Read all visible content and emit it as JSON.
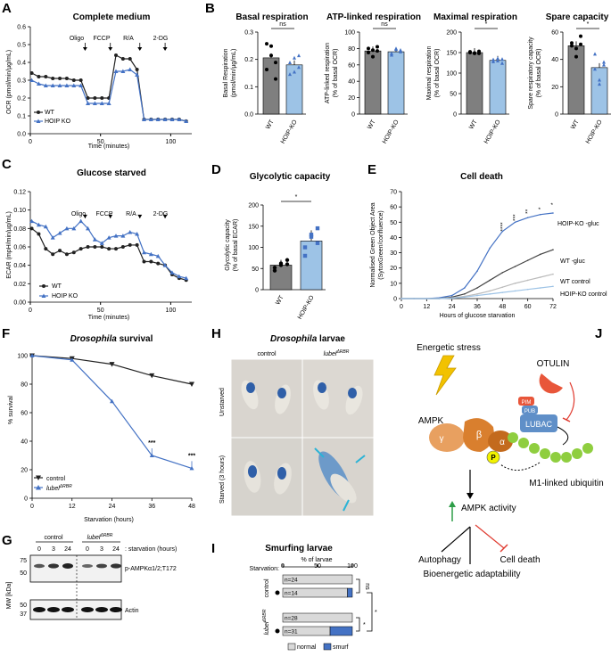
{
  "colors": {
    "wt": "#222222",
    "ko": "#4472c4",
    "ko_light": "#9dc3e6",
    "gray": "#7f7f7f",
    "green": "#2e9e48",
    "red": "#e03c31",
    "orange": "#d97f2e",
    "yellow": "#f2c200",
    "lubac": "#5f8fc8",
    "otulin": "#e8563a"
  },
  "panels": {
    "A": {
      "letter": "A",
      "title": "Complete medium",
      "ylabel": "OCR (pmol/min/µg/mL)",
      "xlabel": "Time (minutes)",
      "injections": [
        "Oligo",
        "FCCP",
        "R/A",
        "2-DG"
      ],
      "legend": [
        "WT",
        "HOIP KO"
      ],
      "yticks": [
        "0.0",
        "0.1",
        "0.2",
        "0.3",
        "0.4",
        "0.5",
        "0.6"
      ],
      "xticks": [
        "0",
        "50",
        "100"
      ]
    },
    "B": {
      "letter": "B",
      "subs": [
        {
          "title": "Basal respiration",
          "ylabel1": "Basal Respiration",
          "ylabel2": "(pmol/min/µg/mL)",
          "yticks": [
            "0.0",
            "0.1",
            "0.2",
            "0.3"
          ],
          "sig": "ns"
        },
        {
          "title": "ATP-linked respiration",
          "ylabel1": "ATP-linked respiration",
          "ylabel2": "(% of basal OCR)",
          "yticks": [
            "0",
            "20",
            "40",
            "60",
            "80",
            "100"
          ],
          "sig": "ns"
        },
        {
          "title": "Maximal respiration",
          "ylabel1": "Maximal respiration",
          "ylabel2": "(% of basal OCR)",
          "yticks": [
            "0",
            "50",
            "100",
            "150",
            "200"
          ],
          "sig": "*"
        },
        {
          "title": "Spare capacity",
          "ylabel1": "Spare respiratory capacity",
          "ylabel2": "(% of basal OCR)",
          "yticks": [
            "0",
            "20",
            "40",
            "60"
          ],
          "sig": "*"
        }
      ],
      "xcats": [
        "WT",
        "HOIP-KO"
      ]
    },
    "C": {
      "letter": "C",
      "title": "Glucose starved",
      "ylabel": "ECAR (mpH/min/µg/mL)",
      "xlabel": "Time (minutes)",
      "injections": [
        "Oligo",
        "FCCP",
        "R/A",
        "2-DG"
      ],
      "legend": [
        "WT",
        "HOIP KO"
      ],
      "yticks": [
        "0.00",
        "0.02",
        "0.04",
        "0.06",
        "0.08",
        "0.10",
        "0.12"
      ],
      "xticks": [
        "0",
        "50",
        "100"
      ]
    },
    "D": {
      "letter": "D",
      "title": "Glycolytic capacity",
      "ylabel1": "Glycolytic capacity",
      "ylabel2": "(% of basal ECAR)",
      "yticks": [
        "0",
        "50",
        "100",
        "150",
        "200"
      ],
      "xcats": [
        "WT",
        "HOIP-KO"
      ],
      "sig": "*"
    },
    "E": {
      "letter": "E",
      "title": "Cell death",
      "ylabel1": "Normalised Green Object Area",
      "ylabel2": "(SytoxGreen/confluence)",
      "xlabel": "Hours of glucose starvation",
      "yticks": [
        "0",
        "10",
        "20",
        "30",
        "40",
        "50",
        "60",
        "70"
      ],
      "xticks": [
        "0",
        "12",
        "24",
        "36",
        "48",
        "60",
        "72"
      ],
      "labels": [
        "HOIP-KO -gluc",
        "WT -gluc",
        "WT control",
        "HOIP-KO control"
      ],
      "stars": [
        "****",
        "***",
        "**",
        "*",
        "*"
      ]
    },
    "F": {
      "letter": "F",
      "title_italic": "Drosophila",
      "title_rest": " survival",
      "ylabel": "% survival",
      "xlabel": "Starvation (hours)",
      "yticks": [
        "0",
        "20",
        "40",
        "60",
        "80",
        "100"
      ],
      "xticks": [
        "0",
        "12",
        "24",
        "36",
        "48"
      ],
      "legend": [
        "control",
        "lubel"
      ],
      "legend_sup": "ΔRBR",
      "stars": [
        "***",
        "***"
      ]
    },
    "G": {
      "letter": "G",
      "col_control": "control",
      "col_lubel": "lubel",
      "col_sup": "ΔRBR",
      "times": [
        "0",
        "3",
        "24",
        "0",
        "3",
        "24"
      ],
      "time_label": ": starvation (hours)",
      "mw_label": "MW [kDa]",
      "mw": [
        "75",
        "50",
        "50",
        "37"
      ],
      "rows": [
        "p-AMPKα1/2;T172",
        "Actin"
      ]
    },
    "H": {
      "letter": "H",
      "title_italic": "Drosophila",
      "title_rest": " larvae",
      "col_control": "control",
      "col_lubel": "lubel",
      "col_sup": "ΔRBR",
      "rows": [
        "Unstarved",
        "Starved (3 hours)"
      ]
    },
    "I": {
      "letter": "I",
      "title": "Smurfing larvae",
      "axis_label": "% of larvae",
      "starvation_label": "Starvation:",
      "xticks": [
        "0",
        "50",
        "100"
      ],
      "group_control": "control",
      "group_lubel": "lubel",
      "group_sup": "ΔRBR",
      "bars": [
        {
          "n": "n=24",
          "smurf": 0
        },
        {
          "n": "n=14",
          "smurf": 7
        },
        {
          "n": "n=28",
          "smurf": 0
        },
        {
          "n": "n=31",
          "smurf": 32
        }
      ],
      "sig": [
        "ns",
        "*",
        "*"
      ],
      "legend": [
        "normal",
        "smurf"
      ]
    },
    "J": {
      "letter": "J",
      "stress": "Energetic stress",
      "otulin": "OTULIN",
      "pim": "PIM",
      "pub": "PUB",
      "lubac": "LUBAC",
      "ampk": "AMPK",
      "beta": "β",
      "gamma": "γ",
      "alpha": "α",
      "p": "P",
      "ubiquitin": "M1-linked ubiquitin",
      "activity": "AMPK activity",
      "autophagy": "Autophagy",
      "cell_death": "Cell death",
      "bioenergetic": "Bioenergetic adaptability"
    }
  },
  "chart_data": [
    {
      "panel": "A",
      "type": "line",
      "title": "Complete medium",
      "xlabel": "Time (minutes)",
      "ylabel": "OCR (pmol/min/µg/mL)",
      "ylim": [
        0,
        0.6
      ],
      "xlim": [
        0,
        115
      ],
      "x": [
        1,
        6,
        11,
        16,
        21,
        26,
        31,
        36,
        41,
        46,
        51,
        56,
        61,
        66,
        71,
        76,
        81,
        86,
        91,
        96,
        101,
        106,
        111
      ],
      "series": [
        {
          "name": "WT",
          "values": [
            0.34,
            0.32,
            0.32,
            0.31,
            0.31,
            0.31,
            0.3,
            0.3,
            0.2,
            0.2,
            0.2,
            0.2,
            0.44,
            0.42,
            0.42,
            0.36,
            0.08,
            0.08,
            0.08,
            0.08,
            0.08,
            0.08,
            0.07
          ]
        },
        {
          "name": "HOIP KO",
          "values": [
            0.3,
            0.28,
            0.27,
            0.27,
            0.27,
            0.27,
            0.27,
            0.27,
            0.17,
            0.17,
            0.17,
            0.17,
            0.35,
            0.35,
            0.36,
            0.33,
            0.08,
            0.08,
            0.08,
            0.08,
            0.08,
            0.08,
            0.07
          ]
        }
      ]
    },
    {
      "panel": "B",
      "type": "bar",
      "title": "Basal respiration",
      "categories": [
        "WT",
        "HOIP-KO"
      ],
      "values": [
        0.24,
        0.21
      ],
      "ylim": [
        0,
        0.35
      ]
    },
    {
      "panel": "B",
      "type": "bar",
      "title": "ATP-linked respiration",
      "categories": [
        "WT",
        "HOIP-KO"
      ],
      "values": [
        77,
        76
      ],
      "ylim": [
        0,
        100
      ]
    },
    {
      "panel": "B",
      "type": "bar",
      "title": "Maximal respiration",
      "categories": [
        "WT",
        "HOIP-KO"
      ],
      "values": [
        150,
        131
      ],
      "ylim": [
        0,
        200
      ]
    },
    {
      "panel": "B",
      "type": "bar",
      "title": "Spare capacity",
      "categories": [
        "WT",
        "HOIP-KO"
      ],
      "values": [
        50,
        34
      ],
      "ylim": [
        0,
        60
      ]
    },
    {
      "panel": "C",
      "type": "line",
      "title": "Glucose starved",
      "xlabel": "Time (minutes)",
      "ylabel": "ECAR (mpH/min/µg/mL)",
      "ylim": [
        0,
        0.12
      ],
      "xlim": [
        0,
        115
      ],
      "x": [
        1,
        6,
        11,
        16,
        21,
        26,
        31,
        36,
        41,
        46,
        51,
        56,
        61,
        66,
        71,
        76,
        81,
        86,
        91,
        96,
        101,
        106,
        111
      ],
      "series": [
        {
          "name": "WT",
          "values": [
            0.08,
            0.074,
            0.058,
            0.052,
            0.056,
            0.052,
            0.054,
            0.058,
            0.06,
            0.06,
            0.06,
            0.058,
            0.058,
            0.06,
            0.062,
            0.062,
            0.044,
            0.044,
            0.042,
            0.04,
            0.03,
            0.026,
            0.024
          ]
        },
        {
          "name": "HOIP KO",
          "values": [
            0.088,
            0.084,
            0.082,
            0.07,
            0.075,
            0.08,
            0.08,
            0.088,
            0.08,
            0.068,
            0.064,
            0.07,
            0.072,
            0.072,
            0.076,
            0.074,
            0.054,
            0.052,
            0.05,
            0.04,
            0.032,
            0.028,
            0.026
          ]
        }
      ]
    },
    {
      "panel": "D",
      "type": "bar",
      "title": "Glycolytic capacity",
      "categories": [
        "WT",
        "HOIP-KO"
      ],
      "values": [
        58,
        115
      ],
      "ylim": [
        0,
        200
      ]
    },
    {
      "panel": "E",
      "type": "line",
      "title": "Cell death",
      "xlabel": "Hours of glucose starvation",
      "ylabel": "Normalised Green Object Area",
      "ylim": [
        0,
        70
      ],
      "xlim": [
        0,
        72
      ],
      "x": [
        0,
        6,
        12,
        18,
        24,
        30,
        36,
        42,
        48,
        54,
        60,
        66,
        72
      ],
      "series": [
        {
          "name": "HOIP-KO -gluc",
          "values": [
            0,
            0,
            0,
            0.5,
            2,
            7,
            18,
            33,
            44,
            50,
            53,
            55,
            56
          ]
        },
        {
          "name": "WT -gluc",
          "values": [
            0,
            0,
            0,
            0,
            1,
            3,
            7,
            12,
            17,
            21,
            25,
            29,
            32
          ]
        },
        {
          "name": "WT control",
          "values": [
            0,
            0,
            0,
            0,
            0.5,
            1.5,
            3,
            5,
            7.5,
            10,
            12,
            14,
            16
          ]
        },
        {
          "name": "HOIP-KO control",
          "values": [
            0,
            0,
            0,
            0,
            0.3,
            1,
            2,
            3,
            4,
            5,
            6,
            7,
            8
          ]
        }
      ]
    },
    {
      "panel": "F",
      "type": "line",
      "title": "Drosophila survival",
      "xlabel": "Starvation (hours)",
      "ylabel": "% survival",
      "ylim": [
        0,
        100
      ],
      "xlim": [
        0,
        48
      ],
      "x": [
        0,
        12,
        24,
        36,
        48
      ],
      "series": [
        {
          "name": "control",
          "values": [
            100,
            98,
            94,
            86,
            80
          ]
        },
        {
          "name": "lubelΔRBR",
          "values": [
            100,
            97,
            68,
            30,
            21
          ]
        }
      ]
    },
    {
      "panel": "I",
      "type": "bar",
      "title": "Smurfing larvae",
      "xlabel": "% of larvae",
      "xlim": [
        0,
        100
      ],
      "categories": [
        "n=24",
        "n=14",
        "n=28",
        "n=31"
      ],
      "series": [
        {
          "name": "normal",
          "values": [
            100,
            93,
            100,
            68
          ]
        },
        {
          "name": "smurf",
          "values": [
            0,
            7,
            0,
            32
          ]
        }
      ]
    }
  ]
}
